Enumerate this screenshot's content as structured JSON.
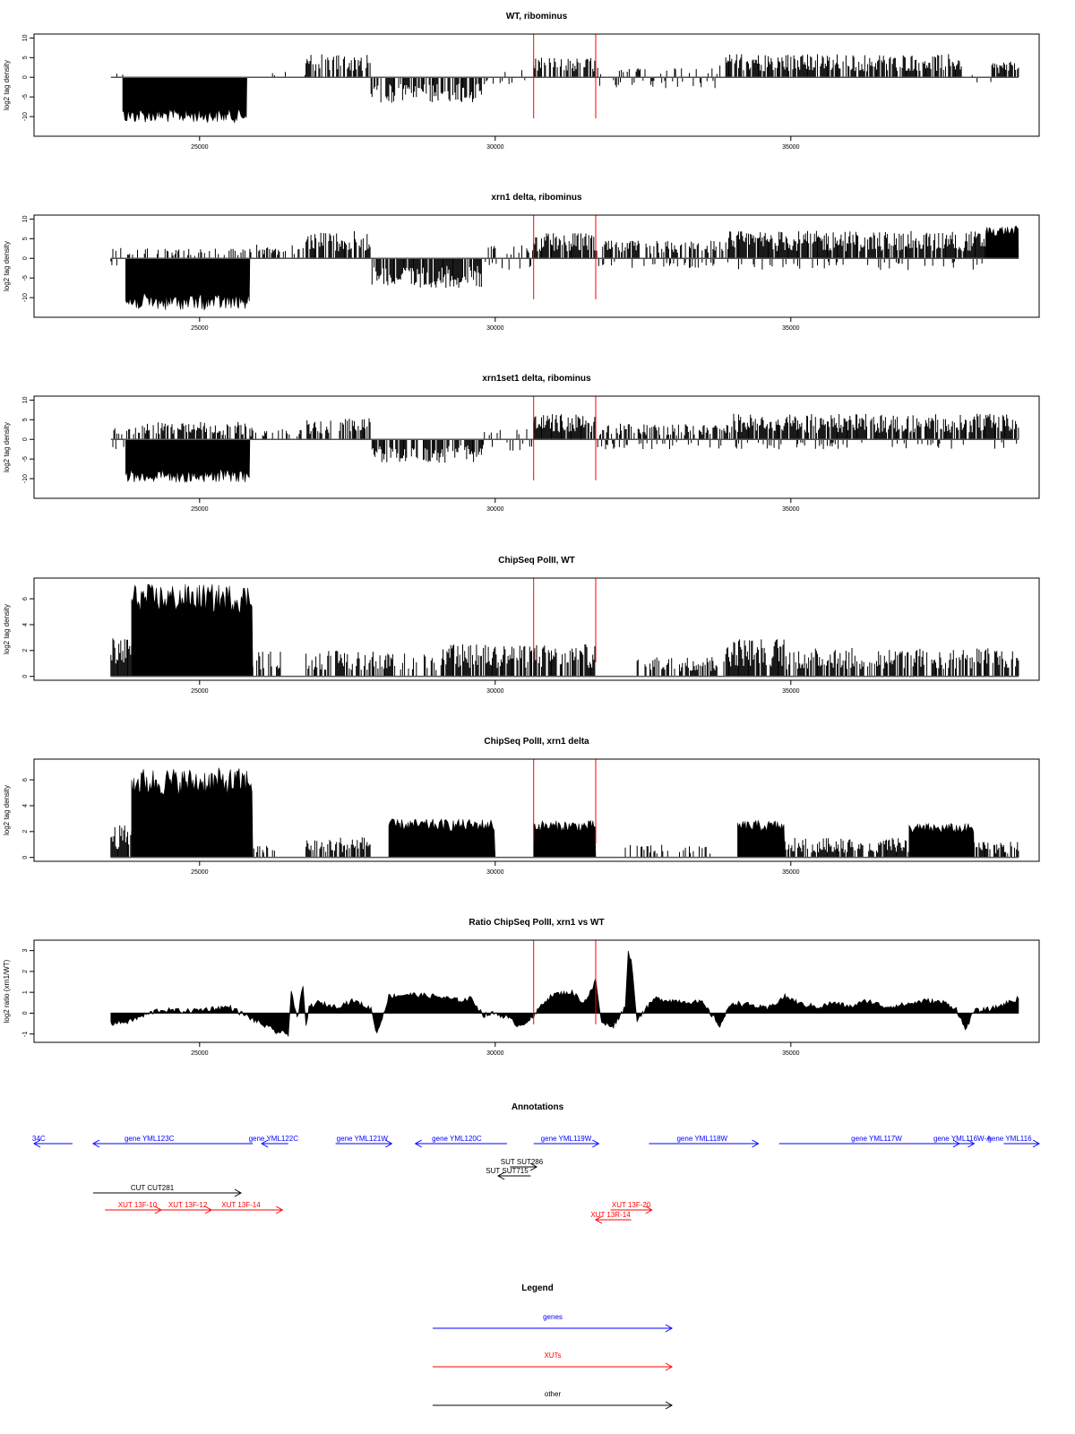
{
  "chart_data": [
    {
      "type": "bar",
      "title": "WT, ribominus",
      "xlabel": "",
      "ylabel": "log2 tag density",
      "xlim": [
        22200,
        39200
      ],
      "ylim": [
        -15,
        11
      ],
      "x_ticks": [
        25000,
        30000,
        35000
      ],
      "y_ticks": [
        10,
        5,
        0,
        -5,
        -10
      ],
      "markers": [
        30650,
        31700
      ],
      "segments": [
        {
          "x0": 23500,
          "x1": 23700,
          "amp": 1.0,
          "dir": "up",
          "fill": 0.2
        },
        {
          "x0": 23700,
          "x1": 25800,
          "amp": 10.5,
          "dir": "down",
          "fill": 1.0
        },
        {
          "x0": 25800,
          "x1": 26800,
          "amp": 1.5,
          "dir": "up",
          "fill": 0.1
        },
        {
          "x0": 26800,
          "x1": 27900,
          "amp": 6.0,
          "dir": "up",
          "fill": 0.7
        },
        {
          "x0": 27900,
          "x1": 29800,
          "amp": 6.5,
          "dir": "down",
          "fill": 0.7
        },
        {
          "x0": 29800,
          "x1": 30650,
          "amp": 2.0,
          "dir": "mixed",
          "fill": 0.2
        },
        {
          "x0": 30650,
          "x1": 31700,
          "amp": 5.0,
          "dir": "up",
          "fill": 0.7
        },
        {
          "x0": 31700,
          "x1": 33900,
          "amp": 3.0,
          "dir": "mixed",
          "fill": 0.3
        },
        {
          "x0": 33900,
          "x1": 37900,
          "amp": 6.0,
          "dir": "up",
          "fill": 0.8
        },
        {
          "x0": 37900,
          "x1": 38400,
          "amp": 1.5,
          "dir": "mixed",
          "fill": 0.1
        },
        {
          "x0": 38400,
          "x1": 38850,
          "amp": 4.0,
          "dir": "up",
          "fill": 0.8
        }
      ]
    },
    {
      "type": "bar",
      "title": "xrn1 delta, ribominus",
      "xlabel": "",
      "ylabel": "log2 tag density",
      "xlim": [
        22200,
        39200
      ],
      "ylim": [
        -15,
        11
      ],
      "x_ticks": [
        25000,
        30000,
        35000
      ],
      "y_ticks": [
        10,
        5,
        0,
        -5,
        -10
      ],
      "markers": [
        30650,
        31700
      ],
      "segments": [
        {
          "x0": 23500,
          "x1": 23750,
          "amp": 3.0,
          "dir": "mixed",
          "fill": 0.4
        },
        {
          "x0": 23750,
          "x1": 25850,
          "amp": 12.0,
          "dir": "down",
          "fill": 1.0
        },
        {
          "x0": 23750,
          "x1": 25850,
          "amp": 2.5,
          "dir": "up",
          "fill": 0.3
        },
        {
          "x0": 25850,
          "x1": 26800,
          "amp": 3.5,
          "dir": "up",
          "fill": 0.5
        },
        {
          "x0": 26800,
          "x1": 27900,
          "amp": 7.0,
          "dir": "up",
          "fill": 0.8
        },
        {
          "x0": 27900,
          "x1": 29800,
          "amp": 7.5,
          "dir": "down",
          "fill": 0.8
        },
        {
          "x0": 29800,
          "x1": 30650,
          "amp": 3.5,
          "dir": "mixed",
          "fill": 0.4
        },
        {
          "x0": 30650,
          "x1": 31700,
          "amp": 6.5,
          "dir": "up",
          "fill": 0.9
        },
        {
          "x0": 31700,
          "x1": 33900,
          "amp": 4.5,
          "dir": "up",
          "fill": 0.6
        },
        {
          "x0": 31700,
          "x1": 33900,
          "amp": 2.5,
          "dir": "down",
          "fill": 0.2
        },
        {
          "x0": 33900,
          "x1": 38300,
          "amp": 7.0,
          "dir": "up",
          "fill": 0.9
        },
        {
          "x0": 33900,
          "x1": 38300,
          "amp": 3.0,
          "dir": "down",
          "fill": 0.15
        },
        {
          "x0": 38300,
          "x1": 38850,
          "amp": 7.5,
          "dir": "up",
          "fill": 1.0
        }
      ]
    },
    {
      "type": "bar",
      "title": "xrn1set1 delta, ribominus",
      "xlabel": "",
      "ylabel": "log2 tag density",
      "xlim": [
        22200,
        39200
      ],
      "ylim": [
        -15,
        11
      ],
      "x_ticks": [
        25000,
        30000,
        35000
      ],
      "y_ticks": [
        10,
        5,
        0,
        -5,
        -10
      ],
      "markers": [
        30650,
        31700
      ],
      "segments": [
        {
          "x0": 23500,
          "x1": 23750,
          "amp": 3.0,
          "dir": "mixed",
          "fill": 0.4
        },
        {
          "x0": 23750,
          "x1": 25850,
          "amp": 10.0,
          "dir": "down",
          "fill": 1.0
        },
        {
          "x0": 23750,
          "x1": 25850,
          "amp": 4.5,
          "dir": "up",
          "fill": 0.6
        },
        {
          "x0": 25850,
          "x1": 26800,
          "amp": 3.0,
          "dir": "up",
          "fill": 0.4
        },
        {
          "x0": 26800,
          "x1": 27900,
          "amp": 5.5,
          "dir": "up",
          "fill": 0.6
        },
        {
          "x0": 27900,
          "x1": 29800,
          "amp": 6.0,
          "dir": "down",
          "fill": 0.7
        },
        {
          "x0": 29800,
          "x1": 30650,
          "amp": 3.0,
          "dir": "mixed",
          "fill": 0.3
        },
        {
          "x0": 30650,
          "x1": 31700,
          "amp": 6.5,
          "dir": "up",
          "fill": 0.9
        },
        {
          "x0": 31700,
          "x1": 33900,
          "amp": 4.0,
          "dir": "up",
          "fill": 0.6
        },
        {
          "x0": 31700,
          "x1": 33900,
          "amp": 2.5,
          "dir": "down",
          "fill": 0.2
        },
        {
          "x0": 33900,
          "x1": 38850,
          "amp": 6.5,
          "dir": "up",
          "fill": 0.85
        },
        {
          "x0": 33900,
          "x1": 38850,
          "amp": 2.5,
          "dir": "down",
          "fill": 0.15
        }
      ]
    },
    {
      "type": "bar",
      "title": "ChipSeq PolII, WT",
      "xlabel": "",
      "ylabel": "log2 tag density",
      "xlim": [
        22200,
        39200
      ],
      "ylim": [
        -0.3,
        7.6
      ],
      "x_ticks": [
        25000,
        30000,
        35000
      ],
      "y_ticks": [
        6,
        4,
        2,
        0
      ],
      "markers": [
        30650,
        31700
      ],
      "segments": [
        {
          "x0": 23500,
          "x1": 23850,
          "amp": 3.0,
          "dir": "up",
          "fill": 0.9
        },
        {
          "x0": 23850,
          "x1": 25900,
          "amp": 6.5,
          "dir": "up",
          "fill": 1.0
        },
        {
          "x0": 25900,
          "x1": 26400,
          "amp": 2.0,
          "dir": "up",
          "fill": 0.6
        },
        {
          "x0": 26800,
          "x1": 27950,
          "amp": 2.0,
          "dir": "up",
          "fill": 0.6
        },
        {
          "x0": 27950,
          "x1": 29100,
          "amp": 1.8,
          "dir": "up",
          "fill": 0.5
        },
        {
          "x0": 29100,
          "x1": 31700,
          "amp": 2.5,
          "dir": "up",
          "fill": 0.75
        },
        {
          "x0": 32400,
          "x1": 33900,
          "amp": 1.5,
          "dir": "up",
          "fill": 0.45
        },
        {
          "x0": 33900,
          "x1": 34900,
          "amp": 3.0,
          "dir": "up",
          "fill": 0.85
        },
        {
          "x0": 34900,
          "x1": 38850,
          "amp": 2.2,
          "dir": "up",
          "fill": 0.65
        }
      ]
    },
    {
      "type": "bar",
      "title": "ChipSeq PolII, xrn1 delta",
      "xlabel": "",
      "ylabel": "log2 tag density",
      "xlim": [
        22200,
        39200
      ],
      "ylim": [
        -0.3,
        7.6
      ],
      "x_ticks": [
        25000,
        30000,
        35000
      ],
      "y_ticks": [
        6,
        4,
        2,
        0
      ],
      "markers": [
        30650,
        31700
      ],
      "segments": [
        {
          "x0": 23500,
          "x1": 23850,
          "amp": 2.5,
          "dir": "up",
          "fill": 0.9
        },
        {
          "x0": 23850,
          "x1": 25900,
          "amp": 6.3,
          "dir": "up",
          "fill": 1.0
        },
        {
          "x0": 25900,
          "x1": 26300,
          "amp": 1.0,
          "dir": "up",
          "fill": 0.4
        },
        {
          "x0": 26800,
          "x1": 27900,
          "amp": 1.6,
          "dir": "up",
          "fill": 0.7
        },
        {
          "x0": 28200,
          "x1": 30000,
          "amp": 2.7,
          "dir": "up",
          "fill": 1.0
        },
        {
          "x0": 30650,
          "x1": 31700,
          "amp": 2.6,
          "dir": "up",
          "fill": 1.0
        },
        {
          "x0": 32200,
          "x1": 33700,
          "amp": 1.0,
          "dir": "up",
          "fill": 0.3
        },
        {
          "x0": 34100,
          "x1": 34900,
          "amp": 2.6,
          "dir": "up",
          "fill": 1.0
        },
        {
          "x0": 34900,
          "x1": 37000,
          "amp": 1.5,
          "dir": "up",
          "fill": 0.8
        },
        {
          "x0": 37000,
          "x1": 38100,
          "amp": 2.4,
          "dir": "up",
          "fill": 0.95
        },
        {
          "x0": 38100,
          "x1": 38850,
          "amp": 1.2,
          "dir": "up",
          "fill": 0.6
        }
      ]
    },
    {
      "type": "area",
      "title": "Ratio ChipSeq PolII, xrn1 vs WT",
      "xlabel": "",
      "ylabel": "log2 ratio (xrn1/WT)",
      "xlim": [
        22200,
        39200
      ],
      "ylim": [
        -1.4,
        3.5
      ],
      "x_ticks": [
        25000,
        30000,
        35000
      ],
      "y_ticks": [
        3,
        2,
        1,
        0,
        -1
      ],
      "markers": [
        30650,
        31700
      ],
      "x": [
        23500,
        23800,
        24300,
        24800,
        25500,
        25900,
        26300,
        26500,
        26550,
        26650,
        26750,
        26800,
        26850,
        27000,
        27300,
        27600,
        27900,
        28000,
        28200,
        28500,
        29000,
        29400,
        29600,
        29800,
        30000,
        30200,
        30400,
        30650,
        30800,
        31000,
        31300,
        31500,
        31650,
        31700,
        31800,
        32000,
        32200,
        32250,
        32300,
        32400,
        32700,
        33000,
        33500,
        33800,
        34000,
        34300,
        34600,
        34900,
        35200,
        35500,
        35700,
        36000,
        36300,
        36600,
        36900,
        37300,
        37600,
        37800,
        37950,
        38100,
        38400,
        38850
      ],
      "y": [
        -0.5,
        -0.4,
        0.15,
        0.1,
        0.3,
        -0.3,
        -0.9,
        -1.0,
        1.1,
        -0.3,
        1.3,
        -0.7,
        0.3,
        0.5,
        0.3,
        0.6,
        0.2,
        -1.0,
        0.8,
        0.9,
        0.8,
        0.6,
        0.7,
        -0.1,
        0.0,
        -0.2,
        -0.6,
        -0.2,
        0.5,
        0.9,
        1.0,
        0.5,
        1.2,
        1.6,
        -0.5,
        -0.6,
        0.3,
        3.0,
        2.5,
        -0.3,
        0.7,
        0.6,
        0.5,
        -0.6,
        0.5,
        0.4,
        0.2,
        0.8,
        0.4,
        0.3,
        0.5,
        0.3,
        0.6,
        0.3,
        0.4,
        0.6,
        0.5,
        0.2,
        -0.8,
        0.1,
        0.2,
        0.7
      ]
    }
  ],
  "annotations": {
    "title": "Annotations",
    "items": [
      {
        "label": "34C",
        "type": "genes",
        "x0": 22200,
        "x1": 22850,
        "dir": "left",
        "row": 0,
        "lx": 22280
      },
      {
        "label": "gene YML123C",
        "type": "genes",
        "x0": 23200,
        "x1": 25900,
        "dir": "left",
        "row": 0,
        "lx": 24150
      },
      {
        "label": "gene YML122C",
        "type": "genes",
        "x0": 26050,
        "x1": 26500,
        "dir": "left",
        "row": 0,
        "lx": 26250
      },
      {
        "label": "gene YML121W",
        "type": "genes",
        "x0": 27300,
        "x1": 28250,
        "dir": "right",
        "row": 0,
        "lx": 27750
      },
      {
        "label": "gene YML120C",
        "type": "genes",
        "x0": 28650,
        "x1": 30200,
        "dir": "left",
        "row": 0,
        "lx": 29350
      },
      {
        "label": "gene YML119W",
        "type": "genes",
        "x0": 30650,
        "x1": 31750,
        "dir": "right",
        "row": 0,
        "lx": 31200
      },
      {
        "label": "gene YML118W",
        "type": "genes",
        "x0": 32600,
        "x1": 34450,
        "dir": "right",
        "row": 0,
        "lx": 33500
      },
      {
        "label": "gene YML117W",
        "type": "genes",
        "x0": 34800,
        "x1": 37850,
        "dir": "right",
        "row": 0,
        "lx": 36450
      },
      {
        "label": "gene YML116W-A",
        "type": "genes",
        "x0": 37750,
        "x1": 38100,
        "dir": "right",
        "row": 0,
        "lx": 37900
      },
      {
        "label": "gene YML116",
        "type": "genes",
        "x0": 38600,
        "x1": 39200,
        "dir": "right",
        "row": 0,
        "lx": 38700
      },
      {
        "label": "SUT SUT286",
        "type": "other",
        "x0": 30250,
        "x1": 30700,
        "dir": "right",
        "row": 1,
        "lx": 30450
      },
      {
        "label": "SUT SUT715",
        "type": "other",
        "x0": 30050,
        "x1": 30600,
        "dir": "left",
        "row": 2,
        "lx": 30200
      },
      {
        "label": "CUT CUT281",
        "type": "other",
        "x0": 23200,
        "x1": 25700,
        "dir": "right",
        "row": 3,
        "lx": 24200
      },
      {
        "label": "XUT 13F-10",
        "type": "XUTs",
        "x0": 23400,
        "x1": 24350,
        "dir": "right",
        "row": 4,
        "lx": 23950
      },
      {
        "label": "XUT 13F-12",
        "type": "XUTs",
        "x0": 24350,
        "x1": 25200,
        "dir": "right",
        "row": 4,
        "lx": 24800
      },
      {
        "label": "XUT 13F-14",
        "type": "XUTs",
        "x0": 25200,
        "x1": 26400,
        "dir": "right",
        "row": 4,
        "lx": 25700
      },
      {
        "label": "XUT 13F-20",
        "type": "XUTs",
        "x0": 31950,
        "x1": 32650,
        "dir": "right",
        "row": 4,
        "lx": 32300
      },
      {
        "label": "XUT 13R-14",
        "type": "XUTs",
        "x0": 31700,
        "x1": 32300,
        "dir": "left",
        "row": 5,
        "lx": 31950
      }
    ]
  },
  "legend": {
    "title": "Legend",
    "entries": [
      {
        "label": "genes",
        "color": "#0000ff"
      },
      {
        "label": "XUTs",
        "color": "#ff0000"
      },
      {
        "label": "other",
        "color": "#000000"
      }
    ]
  },
  "colors": {
    "genes": "#0000ff",
    "XUTs": "#ff0000",
    "other": "#000000",
    "marker": "#ff0000"
  }
}
